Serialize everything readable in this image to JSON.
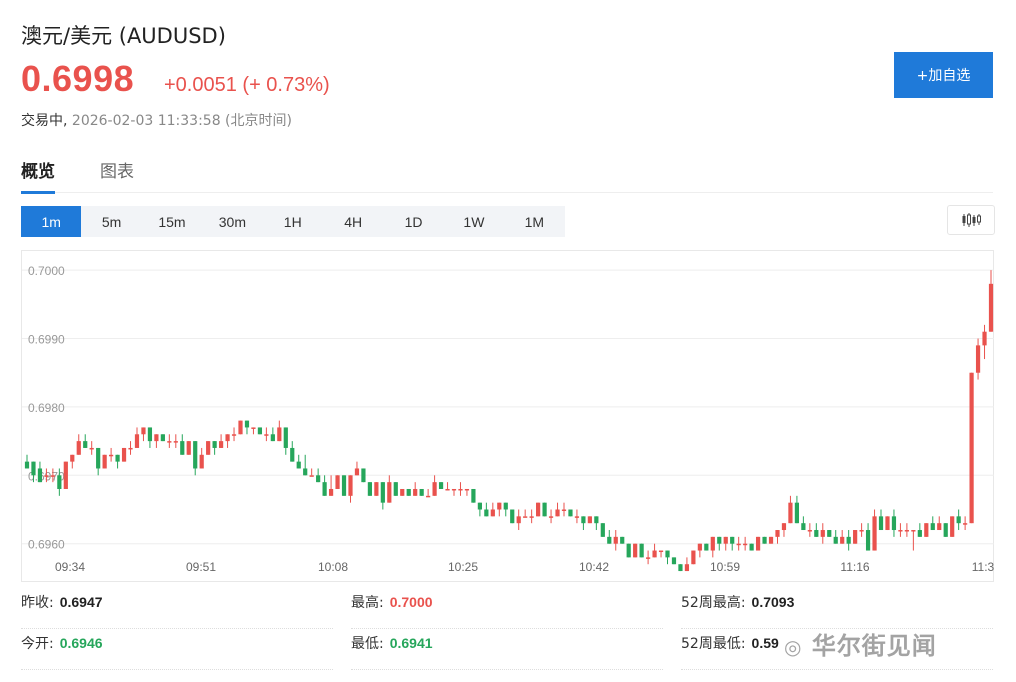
{
  "header": {
    "title": "澳元/美元  (AUDUSD)",
    "price": "0.6998",
    "change": "+0.0051 (+ 0.73%)",
    "state": "交易中,",
    "datetime": "2026-02-03 11:33:58  (北京时间)",
    "add_label": "+加自选"
  },
  "tabs": [
    {
      "label": "概览",
      "active": true
    },
    {
      "label": "图表",
      "active": false
    }
  ],
  "periods": [
    {
      "label": "1m",
      "active": true
    },
    {
      "label": "5m"
    },
    {
      "label": "15m"
    },
    {
      "label": "30m"
    },
    {
      "label": "1H"
    },
    {
      "label": "4H"
    },
    {
      "label": "1D"
    },
    {
      "label": "1W"
    },
    {
      "label": "1M"
    }
  ],
  "colors": {
    "up": "#e9524d",
    "down": "#26a65b",
    "accent": "#1f7ad9"
  },
  "chart_data": {
    "type": "candlestick",
    "ylim": [
      0.69563,
      0.70028
    ],
    "yticks": [
      "0.7000",
      "0.6990",
      "0.6980",
      "0.6970",
      "0.6960"
    ],
    "xticks": [
      "09:34",
      "09:51",
      "10:08",
      "10:25",
      "10:42",
      "10:59",
      "11:16",
      "11:3"
    ],
    "grid": true,
    "candles": [
      [
        0.6972,
        0.6973,
        0.6971,
        0.6971
      ],
      [
        0.6972,
        0.6972,
        0.6969,
        0.697
      ],
      [
        0.6971,
        0.6972,
        0.6969,
        0.6969
      ],
      [
        0.697,
        0.6971,
        0.6969,
        0.697
      ],
      [
        0.697,
        0.6971,
        0.6969,
        0.697
      ],
      [
        0.697,
        0.6971,
        0.6967,
        0.6968
      ],
      [
        0.6968,
        0.6972,
        0.6968,
        0.6972
      ],
      [
        0.6972,
        0.6973,
        0.6971,
        0.6973
      ],
      [
        0.6973,
        0.6976,
        0.6973,
        0.6975
      ],
      [
        0.6975,
        0.6976,
        0.6974,
        0.6974
      ],
      [
        0.6974,
        0.6975,
        0.6973,
        0.6974
      ],
      [
        0.6974,
        0.6974,
        0.697,
        0.6971
      ],
      [
        0.6971,
        0.6973,
        0.6971,
        0.6973
      ],
      [
        0.6973,
        0.6974,
        0.6972,
        0.6973
      ],
      [
        0.6973,
        0.6973,
        0.6971,
        0.6972
      ],
      [
        0.6972,
        0.6974,
        0.6972,
        0.6974
      ],
      [
        0.6974,
        0.6975,
        0.6973,
        0.6974
      ],
      [
        0.6974,
        0.6977,
        0.6974,
        0.6976
      ],
      [
        0.6976,
        0.6977,
        0.6975,
        0.6977
      ],
      [
        0.6977,
        0.6977,
        0.6974,
        0.6975
      ],
      [
        0.6975,
        0.6976,
        0.6974,
        0.6976
      ],
      [
        0.6976,
        0.6976,
        0.6975,
        0.6975
      ],
      [
        0.6975,
        0.6976,
        0.6974,
        0.6975
      ],
      [
        0.6975,
        0.6976,
        0.6974,
        0.6975
      ],
      [
        0.6975,
        0.6976,
        0.6973,
        0.6973
      ],
      [
        0.6973,
        0.6975,
        0.6973,
        0.6975
      ],
      [
        0.6975,
        0.6975,
        0.697,
        0.6971
      ],
      [
        0.6971,
        0.6974,
        0.6971,
        0.6973
      ],
      [
        0.6973,
        0.6975,
        0.6973,
        0.6975
      ],
      [
        0.6975,
        0.6975,
        0.6973,
        0.6974
      ],
      [
        0.6974,
        0.6976,
        0.6974,
        0.6975
      ],
      [
        0.6975,
        0.6976,
        0.6974,
        0.6976
      ],
      [
        0.6976,
        0.6977,
        0.6975,
        0.6976
      ],
      [
        0.6976,
        0.6978,
        0.6976,
        0.6978
      ],
      [
        0.6978,
        0.6978,
        0.6976,
        0.6977
      ],
      [
        0.6977,
        0.6977,
        0.6976,
        0.6977
      ],
      [
        0.6977,
        0.6977,
        0.6976,
        0.6976
      ],
      [
        0.6976,
        0.6977,
        0.6975,
        0.6976
      ],
      [
        0.6976,
        0.6977,
        0.6975,
        0.6975
      ],
      [
        0.6975,
        0.6978,
        0.6975,
        0.6977
      ],
      [
        0.6977,
        0.6977,
        0.6973,
        0.6974
      ],
      [
        0.6974,
        0.6975,
        0.6972,
        0.6972
      ],
      [
        0.6972,
        0.6973,
        0.6971,
        0.6971
      ],
      [
        0.6971,
        0.6973,
        0.697,
        0.697
      ],
      [
        0.697,
        0.6971,
        0.697,
        0.697
      ],
      [
        0.697,
        0.6971,
        0.6969,
        0.6969
      ],
      [
        0.6969,
        0.697,
        0.6967,
        0.6967
      ],
      [
        0.6967,
        0.697,
        0.6967,
        0.6968
      ],
      [
        0.6968,
        0.697,
        0.6968,
        0.697
      ],
      [
        0.697,
        0.697,
        0.6967,
        0.6967
      ],
      [
        0.6967,
        0.697,
        0.6966,
        0.697
      ],
      [
        0.697,
        0.6972,
        0.697,
        0.6971
      ],
      [
        0.6971,
        0.6971,
        0.6969,
        0.6969
      ],
      [
        0.6969,
        0.6969,
        0.6967,
        0.6967
      ],
      [
        0.6967,
        0.6969,
        0.6967,
        0.6969
      ],
      [
        0.6969,
        0.6969,
        0.6965,
        0.6966
      ],
      [
        0.6966,
        0.697,
        0.6966,
        0.6969
      ],
      [
        0.6969,
        0.6969,
        0.6967,
        0.6967
      ],
      [
        0.6967,
        0.6968,
        0.6967,
        0.6968
      ],
      [
        0.6968,
        0.6968,
        0.6967,
        0.6967
      ],
      [
        0.6967,
        0.6969,
        0.6967,
        0.6968
      ],
      [
        0.6968,
        0.6968,
        0.6967,
        0.6967
      ],
      [
        0.6967,
        0.6968,
        0.6967,
        0.6967
      ],
      [
        0.6967,
        0.697,
        0.6967,
        0.6969
      ],
      [
        0.6969,
        0.6969,
        0.6968,
        0.6968
      ],
      [
        0.6968,
        0.6969,
        0.6968,
        0.6968
      ],
      [
        0.6968,
        0.6968,
        0.6967,
        0.6968
      ],
      [
        0.6968,
        0.6969,
        0.6967,
        0.6968
      ],
      [
        0.6968,
        0.6968,
        0.6967,
        0.6968
      ],
      [
        0.6968,
        0.6968,
        0.6966,
        0.6966
      ],
      [
        0.6966,
        0.6966,
        0.6964,
        0.6965
      ],
      [
        0.6965,
        0.6966,
        0.6964,
        0.6964
      ],
      [
        0.6964,
        0.6966,
        0.6964,
        0.6965
      ],
      [
        0.6965,
        0.6966,
        0.6964,
        0.6966
      ],
      [
        0.6966,
        0.6966,
        0.6964,
        0.6965
      ],
      [
        0.6965,
        0.6965,
        0.6963,
        0.6963
      ],
      [
        0.6963,
        0.6965,
        0.6962,
        0.6964
      ],
      [
        0.6964,
        0.6965,
        0.6964,
        0.6964
      ],
      [
        0.6964,
        0.6965,
        0.6963,
        0.6964
      ],
      [
        0.6964,
        0.6966,
        0.6964,
        0.6966
      ],
      [
        0.6966,
        0.6966,
        0.6964,
        0.6964
      ],
      [
        0.6964,
        0.6965,
        0.6963,
        0.6964
      ],
      [
        0.6964,
        0.6966,
        0.6964,
        0.6965
      ],
      [
        0.6965,
        0.6966,
        0.6964,
        0.6965
      ],
      [
        0.6965,
        0.6965,
        0.6964,
        0.6964
      ],
      [
        0.6964,
        0.6965,
        0.6963,
        0.6964
      ],
      [
        0.6964,
        0.6964,
        0.6962,
        0.6963
      ],
      [
        0.6963,
        0.6964,
        0.6963,
        0.6964
      ],
      [
        0.6964,
        0.6964,
        0.6962,
        0.6963
      ],
      [
        0.6963,
        0.6963,
        0.6961,
        0.6961
      ],
      [
        0.6961,
        0.6962,
        0.696,
        0.696
      ],
      [
        0.696,
        0.6962,
        0.6959,
        0.6961
      ],
      [
        0.6961,
        0.6961,
        0.696,
        0.696
      ],
      [
        0.696,
        0.696,
        0.6958,
        0.6958
      ],
      [
        0.6958,
        0.696,
        0.6958,
        0.696
      ],
      [
        0.696,
        0.696,
        0.6958,
        0.6958
      ],
      [
        0.6958,
        0.6959,
        0.6957,
        0.6958
      ],
      [
        0.6958,
        0.696,
        0.6958,
        0.6959
      ],
      [
        0.6959,
        0.6959,
        0.6958,
        0.6959
      ],
      [
        0.6959,
        0.6959,
        0.6957,
        0.6958
      ],
      [
        0.6958,
        0.6958,
        0.6957,
        0.6957
      ],
      [
        0.6957,
        0.6957,
        0.6956,
        0.6956
      ],
      [
        0.6956,
        0.6958,
        0.6956,
        0.6957
      ],
      [
        0.6957,
        0.6959,
        0.6957,
        0.6959
      ],
      [
        0.6959,
        0.696,
        0.6958,
        0.696
      ],
      [
        0.696,
        0.696,
        0.6959,
        0.6959
      ],
      [
        0.6959,
        0.6961,
        0.6958,
        0.6961
      ],
      [
        0.6961,
        0.6961,
        0.6959,
        0.696
      ],
      [
        0.696,
        0.6961,
        0.6959,
        0.6961
      ],
      [
        0.6961,
        0.6961,
        0.6959,
        0.696
      ],
      [
        0.696,
        0.6961,
        0.6959,
        0.696
      ],
      [
        0.696,
        0.6961,
        0.6959,
        0.696
      ],
      [
        0.696,
        0.696,
        0.6959,
        0.6959
      ],
      [
        0.6959,
        0.6961,
        0.6959,
        0.6961
      ],
      [
        0.6961,
        0.6961,
        0.696,
        0.696
      ],
      [
        0.696,
        0.6961,
        0.696,
        0.6961
      ],
      [
        0.6961,
        0.6962,
        0.696,
        0.6962
      ],
      [
        0.6962,
        0.6963,
        0.6961,
        0.6963
      ],
      [
        0.6963,
        0.6967,
        0.6963,
        0.6966
      ],
      [
        0.6966,
        0.6967,
        0.6963,
        0.6963
      ],
      [
        0.6963,
        0.6964,
        0.6962,
        0.6962
      ],
      [
        0.6962,
        0.6963,
        0.6961,
        0.6962
      ],
      [
        0.6962,
        0.6963,
        0.6961,
        0.6961
      ],
      [
        0.6961,
        0.6963,
        0.696,
        0.6962
      ],
      [
        0.6962,
        0.6962,
        0.6961,
        0.6961
      ],
      [
        0.6961,
        0.6962,
        0.696,
        0.696
      ],
      [
        0.696,
        0.6962,
        0.696,
        0.6961
      ],
      [
        0.6961,
        0.6962,
        0.6959,
        0.696
      ],
      [
        0.696,
        0.6962,
        0.696,
        0.6962
      ],
      [
        0.6962,
        0.6963,
        0.6961,
        0.6962
      ],
      [
        0.6962,
        0.6963,
        0.6959,
        0.6959
      ],
      [
        0.6959,
        0.6965,
        0.6959,
        0.6964
      ],
      [
        0.6964,
        0.6965,
        0.6962,
        0.6962
      ],
      [
        0.6962,
        0.6964,
        0.6962,
        0.6964
      ],
      [
        0.6964,
        0.6965,
        0.6961,
        0.6962
      ],
      [
        0.6962,
        0.6963,
        0.6961,
        0.6962
      ],
      [
        0.6962,
        0.6963,
        0.6961,
        0.6962
      ],
      [
        0.6962,
        0.6962,
        0.6959,
        0.6962
      ],
      [
        0.6962,
        0.6963,
        0.6961,
        0.6961
      ],
      [
        0.6961,
        0.6963,
        0.6961,
        0.6963
      ],
      [
        0.6963,
        0.6964,
        0.6962,
        0.6962
      ],
      [
        0.6962,
        0.6964,
        0.6962,
        0.6963
      ],
      [
        0.6963,
        0.6963,
        0.6961,
        0.6961
      ],
      [
        0.6961,
        0.6964,
        0.6961,
        0.6964
      ],
      [
        0.6964,
        0.6965,
        0.6962,
        0.6963
      ],
      [
        0.6963,
        0.6964,
        0.6962,
        0.6963
      ],
      [
        0.6963,
        0.6985,
        0.6963,
        0.6985
      ],
      [
        0.6985,
        0.699,
        0.6984,
        0.6989
      ],
      [
        0.6989,
        0.6992,
        0.6987,
        0.6991
      ],
      [
        0.6991,
        0.7,
        0.6991,
        0.6998
      ]
    ]
  },
  "stats": [
    {
      "label": "昨收:",
      "value": "0.6947",
      "tone": "neu"
    },
    {
      "label": "最高:",
      "value": "0.7000",
      "tone": "up"
    },
    {
      "label": "52周最高:",
      "value": "0.7093",
      "tone": "neu"
    },
    {
      "label": "今开:",
      "value": "0.6946",
      "tone": "down"
    },
    {
      "label": "最低:",
      "value": "0.6941",
      "tone": "down"
    },
    {
      "label": "52周最低:",
      "value": "0.59",
      "tone": "neu"
    }
  ],
  "watermark": "华尔街见闻"
}
